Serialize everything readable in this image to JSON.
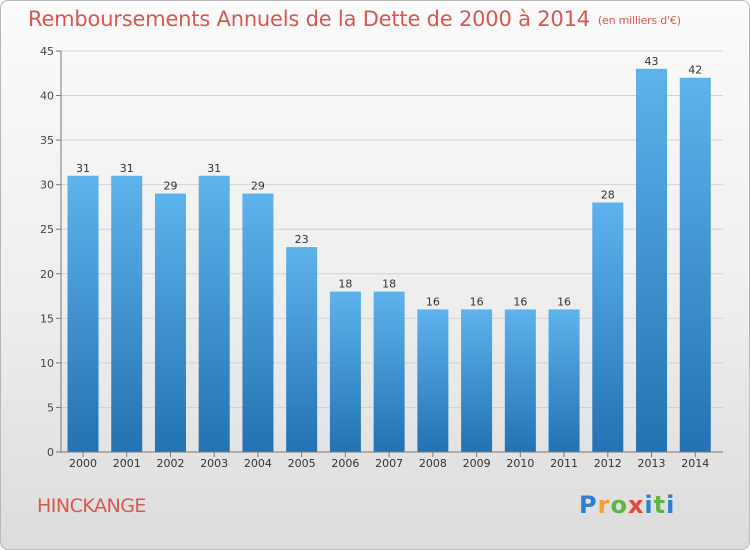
{
  "title": "Remboursements Annuels de la Dette de 2000 à 2014",
  "subtitle": "(en milliers d'€)",
  "commune": "HINCKANGE",
  "logo": {
    "text": "Proxiti",
    "colors": [
      "#2e7fd0",
      "#f2a12c",
      "#5fb544",
      "#e2473f",
      "#2e7fd0",
      "#5fb544",
      "#2e7fd0"
    ]
  },
  "colors": {
    "bar_top": "#5db3ec",
    "bar_bottom": "#2372b3",
    "text_red": "#d9574f"
  },
  "chart_data": {
    "type": "bar",
    "categories": [
      "2000",
      "2001",
      "2002",
      "2003",
      "2004",
      "2005",
      "2006",
      "2007",
      "2008",
      "2009",
      "2010",
      "2011",
      "2012",
      "2013",
      "2014"
    ],
    "values": [
      31,
      31,
      29,
      31,
      29,
      23,
      18,
      18,
      16,
      16,
      16,
      16,
      28,
      43,
      42
    ],
    "ylim": [
      0,
      45
    ],
    "yticks": [
      0,
      5,
      10,
      15,
      20,
      25,
      30,
      35,
      40,
      45
    ],
    "grid": true
  }
}
